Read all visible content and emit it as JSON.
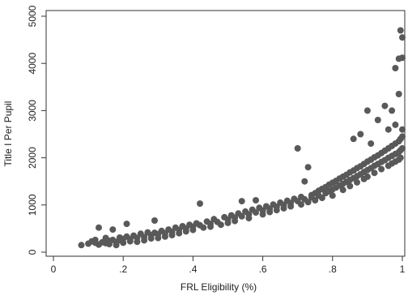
{
  "chart_data": {
    "type": "scatter",
    "xlabel": "FRL Eligibility (%)",
    "ylabel": "Title I Per Pupil",
    "xlim": [
      0,
      1
    ],
    "ylim": [
      -100,
      5000
    ],
    "x_ticks": [
      0,
      0.2,
      0.4,
      0.6,
      0.8,
      1
    ],
    "x_tick_labels": [
      "0",
      ".2",
      ".4",
      ".6",
      ".8",
      "1"
    ],
    "y_ticks": [
      0,
      1000,
      2000,
      3000,
      4000,
      5000
    ],
    "y_tick_labels": [
      "0",
      "1000",
      "2000",
      "3000",
      "4000",
      "5000"
    ],
    "grid": false,
    "marker_color": "#595959",
    "points": [
      [
        0.08,
        150
      ],
      [
        0.1,
        180
      ],
      [
        0.11,
        230
      ],
      [
        0.12,
        260
      ],
      [
        0.12,
        200
      ],
      [
        0.13,
        520
      ],
      [
        0.13,
        160
      ],
      [
        0.14,
        210
      ],
      [
        0.15,
        300
      ],
      [
        0.15,
        190
      ],
      [
        0.16,
        240
      ],
      [
        0.16,
        170
      ],
      [
        0.17,
        480
      ],
      [
        0.17,
        260
      ],
      [
        0.18,
        220
      ],
      [
        0.18,
        150
      ],
      [
        0.19,
        310
      ],
      [
        0.19,
        250
      ],
      [
        0.2,
        280
      ],
      [
        0.2,
        200
      ],
      [
        0.21,
        600
      ],
      [
        0.21,
        330
      ],
      [
        0.22,
        230
      ],
      [
        0.22,
        270
      ],
      [
        0.23,
        350
      ],
      [
        0.24,
        300
      ],
      [
        0.24,
        220
      ],
      [
        0.25,
        390
      ],
      [
        0.26,
        320
      ],
      [
        0.26,
        250
      ],
      [
        0.27,
        420
      ],
      [
        0.28,
        360
      ],
      [
        0.28,
        290
      ],
      [
        0.29,
        670
      ],
      [
        0.29,
        410
      ],
      [
        0.3,
        380
      ],
      [
        0.3,
        300
      ],
      [
        0.31,
        450
      ],
      [
        0.32,
        400
      ],
      [
        0.32,
        330
      ],
      [
        0.33,
        480
      ],
      [
        0.34,
        430
      ],
      [
        0.34,
        360
      ],
      [
        0.35,
        520
      ],
      [
        0.36,
        470
      ],
      [
        0.36,
        400
      ],
      [
        0.37,
        550
      ],
      [
        0.38,
        500
      ],
      [
        0.38,
        440
      ],
      [
        0.39,
        580
      ],
      [
        0.4,
        540
      ],
      [
        0.4,
        470
      ],
      [
        0.41,
        610
      ],
      [
        0.42,
        1030
      ],
      [
        0.42,
        570
      ],
      [
        0.43,
        520
      ],
      [
        0.44,
        650
      ],
      [
        0.45,
        600
      ],
      [
        0.45,
        540
      ],
      [
        0.46,
        700
      ],
      [
        0.47,
        640
      ],
      [
        0.48,
        580
      ],
      [
        0.49,
        740
      ],
      [
        0.5,
        690
      ],
      [
        0.5,
        620
      ],
      [
        0.51,
        780
      ],
      [
        0.52,
        730
      ],
      [
        0.52,
        660
      ],
      [
        0.53,
        820
      ],
      [
        0.54,
        1080
      ],
      [
        0.54,
        760
      ],
      [
        0.55,
        860
      ],
      [
        0.56,
        800
      ],
      [
        0.56,
        720
      ],
      [
        0.57,
        900
      ],
      [
        0.58,
        840
      ],
      [
        0.58,
        1100
      ],
      [
        0.59,
        940
      ],
      [
        0.6,
        880
      ],
      [
        0.6,
        800
      ],
      [
        0.61,
        970
      ],
      [
        0.62,
        920
      ],
      [
        0.62,
        850
      ],
      [
        0.63,
        1010
      ],
      [
        0.64,
        960
      ],
      [
        0.64,
        890
      ],
      [
        0.65,
        1050
      ],
      [
        0.66,
        1000
      ],
      [
        0.66,
        930
      ],
      [
        0.67,
        1090
      ],
      [
        0.68,
        1040
      ],
      [
        0.68,
        970
      ],
      [
        0.69,
        1130
      ],
      [
        0.7,
        1080
      ],
      [
        0.7,
        2200
      ],
      [
        0.71,
        1010
      ],
      [
        0.71,
        1170
      ],
      [
        0.72,
        1120
      ],
      [
        0.72,
        1500
      ],
      [
        0.73,
        1800
      ],
      [
        0.73,
        1060
      ],
      [
        0.74,
        1210
      ],
      [
        0.74,
        1160
      ],
      [
        0.75,
        1250
      ],
      [
        0.75,
        1100
      ],
      [
        0.76,
        1300
      ],
      [
        0.76,
        1200
      ],
      [
        0.77,
        1340
      ],
      [
        0.77,
        1150
      ],
      [
        0.78,
        1380
      ],
      [
        0.78,
        1250
      ],
      [
        0.79,
        1430
      ],
      [
        0.79,
        1290
      ],
      [
        0.8,
        1470
      ],
      [
        0.8,
        1330
      ],
      [
        0.8,
        1200
      ],
      [
        0.81,
        1510
      ],
      [
        0.81,
        1370
      ],
      [
        0.82,
        1560
      ],
      [
        0.82,
        1410
      ],
      [
        0.83,
        1600
      ],
      [
        0.83,
        1450
      ],
      [
        0.83,
        1320
      ],
      [
        0.84,
        1640
      ],
      [
        0.84,
        1490
      ],
      [
        0.85,
        1690
      ],
      [
        0.85,
        1530
      ],
      [
        0.85,
        1400
      ],
      [
        0.86,
        1730
      ],
      [
        0.86,
        1570
      ],
      [
        0.86,
        2400
      ],
      [
        0.87,
        1780
      ],
      [
        0.87,
        1610
      ],
      [
        0.87,
        1480
      ],
      [
        0.88,
        1820
      ],
      [
        0.88,
        1650
      ],
      [
        0.88,
        2500
      ],
      [
        0.89,
        1870
      ],
      [
        0.89,
        1700
      ],
      [
        0.89,
        1550
      ],
      [
        0.9,
        3000
      ],
      [
        0.9,
        1920
      ],
      [
        0.9,
        1740
      ],
      [
        0.9,
        1600
      ],
      [
        0.91,
        1960
      ],
      [
        0.91,
        1780
      ],
      [
        0.91,
        2300
      ],
      [
        0.92,
        2010
      ],
      [
        0.92,
        1830
      ],
      [
        0.92,
        1680
      ],
      [
        0.93,
        2050
      ],
      [
        0.93,
        1870
      ],
      [
        0.93,
        2800
      ],
      [
        0.94,
        2100
      ],
      [
        0.94,
        1910
      ],
      [
        0.94,
        1760
      ],
      [
        0.95,
        2150
      ],
      [
        0.95,
        1950
      ],
      [
        0.95,
        3100
      ],
      [
        0.96,
        2200
      ],
      [
        0.96,
        2000
      ],
      [
        0.96,
        1830
      ],
      [
        0.96,
        2600
      ],
      [
        0.97,
        2250
      ],
      [
        0.97,
        2040
      ],
      [
        0.97,
        1880
      ],
      [
        0.97,
        3000
      ],
      [
        0.98,
        2300
      ],
      [
        0.98,
        2080
      ],
      [
        0.98,
        1920
      ],
      [
        0.98,
        2700
      ],
      [
        0.98,
        3900
      ],
      [
        0.99,
        2350
      ],
      [
        0.99,
        2120
      ],
      [
        0.99,
        1960
      ],
      [
        0.99,
        3350
      ],
      [
        0.99,
        4100
      ],
      [
        0.995,
        4700
      ],
      [
        0.995,
        2400
      ],
      [
        0.995,
        2160
      ],
      [
        0.995,
        2000
      ],
      [
        1.0,
        2450
      ],
      [
        1.0,
        2200
      ],
      [
        1.0,
        2600
      ],
      [
        1.0,
        4550
      ],
      [
        1.0,
        4120
      ]
    ]
  }
}
